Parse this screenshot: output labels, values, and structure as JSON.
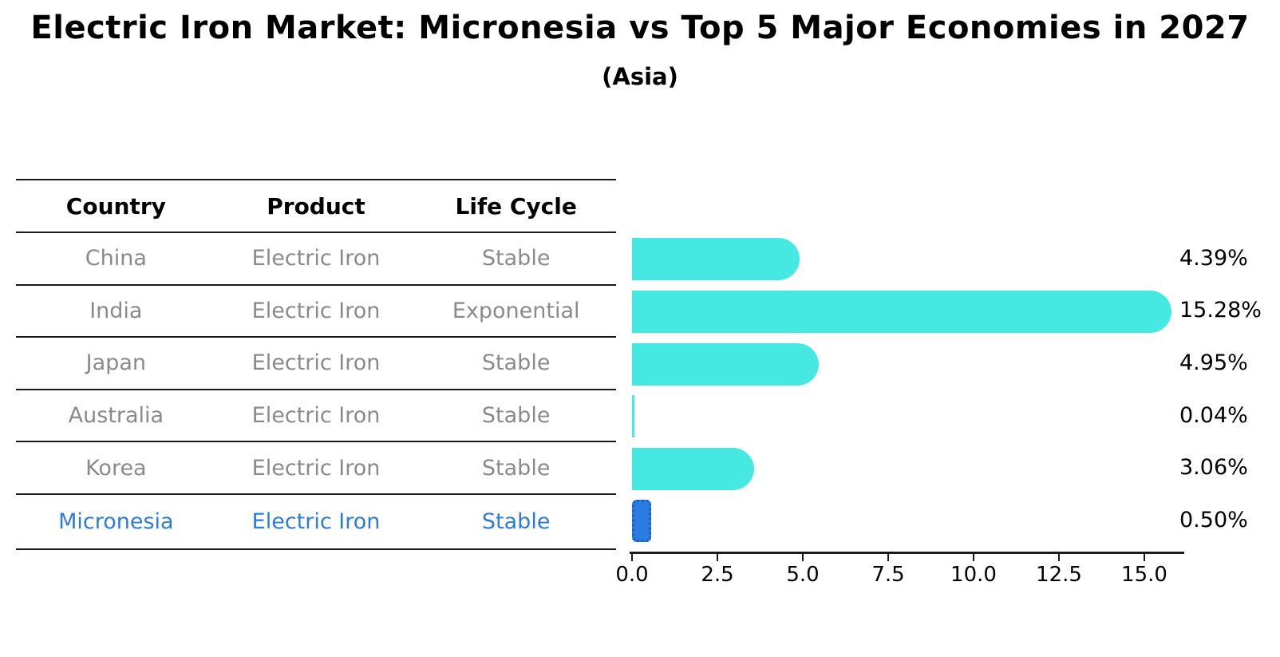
{
  "chart_data": {
    "type": "bar",
    "orientation": "horizontal",
    "title": "Electric Iron Market: Micronesia vs Top 5 Major Economies in 2027",
    "subtitle": "(Asia)",
    "categories": [
      "China",
      "India",
      "Japan",
      "Australia",
      "Korea",
      "Micronesia"
    ],
    "values": [
      4.39,
      15.28,
      4.95,
      0.04,
      3.06,
      0.5
    ],
    "value_labels": [
      "4.39%",
      "15.28%",
      "4.95%",
      "0.04%",
      "3.06%",
      "0.50%"
    ],
    "x_ticks": [
      0,
      2.5,
      5,
      7.5,
      10,
      12.5,
      15
    ],
    "x_tick_labels": [
      "0.0",
      "2.5",
      "5.0",
      "7.5",
      "10.0",
      "12.5",
      "15.0"
    ],
    "xlim": [
      0,
      16.1
    ],
    "grid": false,
    "legend": false,
    "highlight_category": "Micronesia",
    "colors": {
      "bar": "#46E8E2",
      "highlight_fill": "#2B7CE0",
      "highlight_border": "#1A5FC8",
      "highlight_text": "#2E7CD6",
      "row_text": "#8a8a8a",
      "axis": "#1a1a1a",
      "label_text": "#000000"
    }
  },
  "table": {
    "headers": [
      "Country",
      "Product",
      "Life Cycle"
    ],
    "rows": [
      {
        "country": "China",
        "product": "Electric Iron",
        "life_cycle": "Stable",
        "highlighted": false
      },
      {
        "country": "India",
        "product": "Electric Iron",
        "life_cycle": "Exponential",
        "highlighted": false
      },
      {
        "country": "Japan",
        "product": "Electric Iron",
        "life_cycle": "Stable",
        "highlighted": false
      },
      {
        "country": "Australia",
        "product": "Electric Iron",
        "life_cycle": "Stable",
        "highlighted": false
      },
      {
        "country": "Korea",
        "product": "Electric Iron",
        "life_cycle": "Stable",
        "highlighted": false
      },
      {
        "country": "Micronesia",
        "product": "Electric Iron",
        "life_cycle": "Stable",
        "highlighted": true
      }
    ]
  }
}
